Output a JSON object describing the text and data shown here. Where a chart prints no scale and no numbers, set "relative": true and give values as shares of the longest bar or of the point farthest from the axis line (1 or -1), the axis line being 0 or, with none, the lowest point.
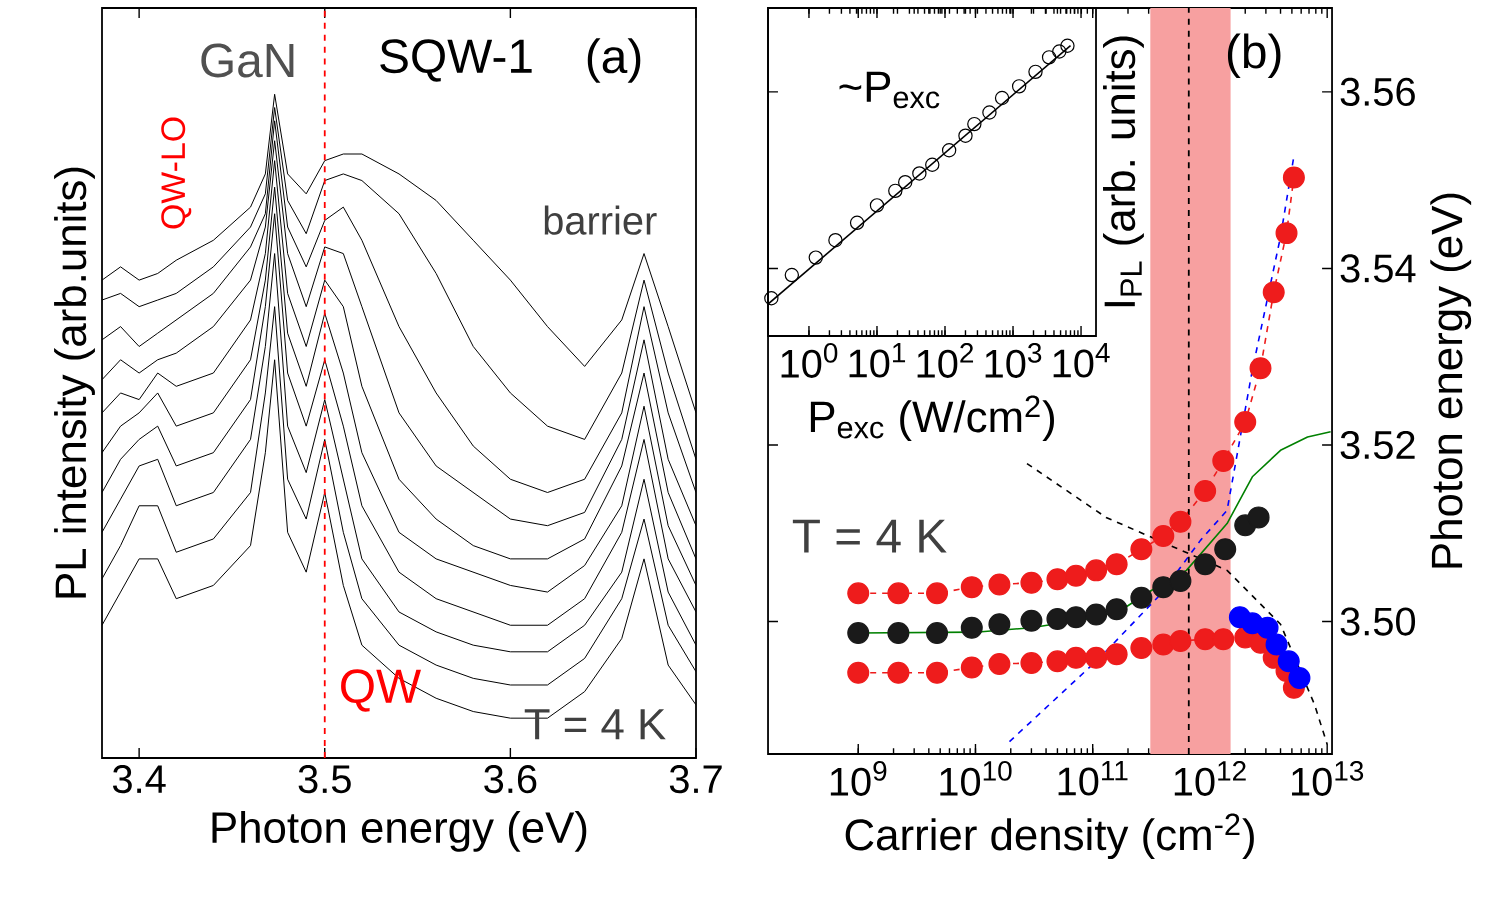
{
  "chart_data": [
    {
      "type": "line",
      "relative": true,
      "xlabel": "Photon energy (eV)",
      "ylabel": "PL intensity (arb.units)",
      "xlim": [
        3.38,
        3.7
      ],
      "xticks": [
        3.4,
        3.5,
        3.6,
        3.7
      ],
      "x": [
        3.38,
        3.39,
        3.4,
        3.41,
        3.42,
        3.44,
        3.46,
        3.468,
        3.473,
        3.48,
        3.49,
        3.5,
        3.51,
        3.52,
        3.54,
        3.56,
        3.58,
        3.6,
        3.62,
        3.64,
        3.66,
        3.672,
        3.685,
        3.7
      ],
      "series": [
        {
          "color": "#000000",
          "values": [
            0.72,
            0.74,
            0.72,
            0.73,
            0.75,
            0.78,
            0.83,
            0.88,
            1.0,
            0.88,
            0.85,
            0.9,
            0.91,
            0.91,
            0.88,
            0.84,
            0.78,
            0.72,
            0.65,
            0.59,
            0.66,
            0.76,
            0.65,
            0.52
          ]
        },
        {
          "color": "#000000",
          "values": [
            0.69,
            0.7,
            0.68,
            0.69,
            0.7,
            0.74,
            0.8,
            0.85,
            0.98,
            0.84,
            0.79,
            0.87,
            0.88,
            0.87,
            0.82,
            0.73,
            0.62,
            0.55,
            0.5,
            0.48,
            0.58,
            0.72,
            0.58,
            0.45
          ]
        },
        {
          "color": "#000000",
          "values": [
            0.63,
            0.65,
            0.62,
            0.64,
            0.66,
            0.7,
            0.77,
            0.82,
            0.96,
            0.8,
            0.74,
            0.81,
            0.83,
            0.78,
            0.65,
            0.55,
            0.47,
            0.42,
            0.4,
            0.42,
            0.52,
            0.68,
            0.52,
            0.4
          ]
        },
        {
          "color": "#000000",
          "values": [
            0.57,
            0.6,
            0.58,
            0.6,
            0.61,
            0.65,
            0.72,
            0.8,
            0.93,
            0.76,
            0.68,
            0.77,
            0.76,
            0.68,
            0.52,
            0.44,
            0.4,
            0.36,
            0.35,
            0.37,
            0.48,
            0.63,
            0.45,
            0.35
          ]
        },
        {
          "color": "#000000",
          "values": [
            0.52,
            0.55,
            0.54,
            0.58,
            0.56,
            0.58,
            0.66,
            0.76,
            0.9,
            0.7,
            0.62,
            0.72,
            0.68,
            0.56,
            0.42,
            0.36,
            0.32,
            0.3,
            0.3,
            0.33,
            0.44,
            0.58,
            0.4,
            0.3
          ]
        },
        {
          "color": "#000000",
          "values": [
            0.46,
            0.5,
            0.52,
            0.55,
            0.5,
            0.52,
            0.6,
            0.72,
            0.86,
            0.64,
            0.56,
            0.67,
            0.58,
            0.46,
            0.34,
            0.3,
            0.28,
            0.26,
            0.25,
            0.29,
            0.38,
            0.53,
            0.35,
            0.26
          ]
        },
        {
          "color": "#000000",
          "values": [
            0.4,
            0.45,
            0.48,
            0.5,
            0.44,
            0.46,
            0.54,
            0.68,
            0.82,
            0.58,
            0.5,
            0.6,
            0.5,
            0.38,
            0.28,
            0.24,
            0.22,
            0.2,
            0.2,
            0.24,
            0.34,
            0.48,
            0.3,
            0.22
          ]
        },
        {
          "color": "#000000",
          "values": [
            0.34,
            0.39,
            0.44,
            0.45,
            0.38,
            0.4,
            0.48,
            0.62,
            0.76,
            0.5,
            0.43,
            0.54,
            0.42,
            0.3,
            0.22,
            0.19,
            0.17,
            0.16,
            0.16,
            0.2,
            0.28,
            0.42,
            0.25,
            0.17
          ]
        },
        {
          "color": "#000000",
          "values": [
            0.27,
            0.32,
            0.38,
            0.38,
            0.31,
            0.33,
            0.4,
            0.55,
            0.68,
            0.42,
            0.36,
            0.48,
            0.34,
            0.24,
            0.17,
            0.14,
            0.12,
            0.11,
            0.11,
            0.15,
            0.24,
            0.36,
            0.2,
            0.13
          ]
        },
        {
          "color": "#000000",
          "values": [
            0.2,
            0.25,
            0.3,
            0.3,
            0.24,
            0.26,
            0.32,
            0.46,
            0.6,
            0.34,
            0.28,
            0.4,
            0.26,
            0.17,
            0.12,
            0.09,
            0.07,
            0.06,
            0.06,
            0.1,
            0.18,
            0.3,
            0.14,
            0.08
          ]
        }
      ],
      "ref_lines": [
        {
          "axis": "x",
          "value": 3.5,
          "color": "#ff0000",
          "line_style": "dashed"
        }
      ],
      "annotations": [
        "GaN",
        "SQW-1",
        "(a)",
        "QW-LO",
        "barrier",
        "QW",
        "T = 4 K"
      ]
    },
    {
      "type": "scatter",
      "xlabel": "Carrier density (cm$^{-2}$)",
      "ylabel": "Photon energy (eV)",
      "log": "x",
      "xlim": [
        170000000.0,
        11000000000000.0
      ],
      "ylim": [
        3.485,
        3.5695
      ],
      "xticks": [
        {
          "value": 1000000000.0,
          "label": "10$^{9}$"
        },
        {
          "value": 10000000000.0,
          "label": "10$^{10}$"
        },
        {
          "value": 100000000000.0,
          "label": "10$^{11}$"
        },
        {
          "value": 1000000000000.0,
          "label": "10$^{12}$"
        },
        {
          "value": 10000000000000.0,
          "label": "10$^{13}$"
        }
      ],
      "yticks": [
        {
          "value": 3.5,
          "label": "3.50"
        },
        3.52,
        3.54,
        3.56
      ],
      "bands": [
        {
          "axis": "x",
          "from": 310000000000.0,
          "to": 1500000000000.0,
          "color": "#f7a0a0"
        }
      ],
      "ref_lines": [
        {
          "axis": "x",
          "value": 660000000000.0,
          "color": "#000000",
          "line_style": "dashed"
        }
      ],
      "series": [
        {
          "type": "line",
          "color": "#000000",
          "line_style": "dashed",
          "marker": "none",
          "x": [
            27500000000.0,
            130000000000.0,
            1400000000000.0,
            4000000000000.0,
            7800000000000.0,
            10000000000000.0
          ],
          "values": [
            3.5179,
            3.5118,
            3.5058,
            3.4997,
            3.4906,
            3.4861
          ]
        },
        {
          "type": "line",
          "color": "#0000ff",
          "line_style": "dashed",
          "marker": "none",
          "x": [
            19500000000.0,
            115000000000.0,
            380000000000.0,
            830000000000.0,
            1400000000000.0,
            2300000000000.0,
            4000000000000.0,
            5200000000000.0
          ],
          "values": [
            3.4864,
            3.4959,
            3.5031,
            3.5092,
            3.5126,
            3.5285,
            3.5436,
            3.5527
          ]
        },
        {
          "type": "line",
          "color": "#ee1c1c",
          "line_style": "dashed",
          "marker": "circle",
          "x": [
            1000000000.0,
            2200000000.0,
            4700000000.0,
            9300000000.0,
            16000000000.0,
            30000000000.0,
            50000000000.0,
            72000000000.0,
            107000000000.0,
            160000000000.0,
            260000000000.0,
            400000000000.0,
            560000000000.0,
            910000000000.0,
            1300000000000.0,
            2000000000000.0,
            2700000000000.0,
            3500000000000.0,
            4500000000000.0,
            5200000000000.0
          ],
          "values": [
            3.5032,
            3.5032,
            3.5032,
            3.5039,
            3.5042,
            3.5044,
            3.5048,
            3.5052,
            3.5058,
            3.5065,
            3.5082,
            3.5097,
            3.5113,
            3.5148,
            3.5182,
            3.5226,
            3.5287,
            3.5373,
            3.544,
            3.5503
          ]
        },
        {
          "type": "line",
          "color": "#ee1c1c",
          "line_style": "dashed",
          "marker": "circle",
          "x": [
            1000000000.0,
            2200000000.0,
            4700000000.0,
            9300000000.0,
            16000000000.0,
            30000000000.0,
            50000000000.0,
            72000000000.0,
            107000000000.0,
            160000000000.0,
            260000000000.0,
            400000000000.0,
            560000000000.0,
            910000000000.0,
            1300000000000.0,
            2000000000000.0,
            2700000000000.0,
            3500000000000.0,
            4500000000000.0,
            5200000000000.0
          ],
          "values": [
            3.4942,
            3.4942,
            3.4942,
            3.4948,
            3.4952,
            3.4953,
            3.4955,
            3.4959,
            3.4959,
            3.4963,
            3.497,
            3.4974,
            3.4978,
            3.498,
            3.498,
            3.4982,
            3.4976,
            3.4959,
            3.4944,
            3.4925
          ]
        },
        {
          "type": "scatter",
          "color": "#1a1a1a",
          "marker": "circle",
          "x": [
            1000000000.0,
            2200000000.0,
            4700000000.0,
            9300000000.0,
            16000000000.0,
            30000000000.0,
            50000000000.0,
            72000000000.0,
            107000000000.0,
            160000000000.0,
            260000000000.0,
            400000000000.0,
            560000000000.0,
            910000000000.0,
            1350000000000.0,
            2000000000000.0,
            2600000000000.0
          ],
          "values": [
            3.4987,
            3.4987,
            3.4987,
            3.4993,
            3.4997,
            3.5001,
            3.5003,
            3.5005,
            3.5008,
            3.5014,
            3.5027,
            3.5039,
            3.5046,
            3.5065,
            3.5082,
            3.5109,
            3.5118
          ]
        },
        {
          "type": "line",
          "color": "#008000",
          "line_style": "solid",
          "marker": "none",
          "x": [
            1000000000.0,
            10000000000.0,
            30000000000.0,
            100000000000.0,
            170000000000.0,
            380000000000.0,
            630000000000.0,
            1400000000000.0,
            2300000000000.0,
            4000000000000.0,
            6800000000000.0,
            10700000000000.0
          ],
          "values": [
            3.4987,
            3.4988,
            3.4993,
            3.5004,
            3.5012,
            3.5042,
            3.5058,
            3.5111,
            3.5164,
            3.5194,
            3.5209,
            3.5215
          ]
        },
        {
          "type": "scatter",
          "color": "#0000ff",
          "marker": "circle",
          "x": [
            1800000000000.0,
            2300000000000.0,
            3100000000000.0,
            3700000000000.0,
            4700000000000.0,
            5800000000000.0
          ],
          "values": [
            3.5005,
            3.4998,
            3.4993,
            3.4974,
            3.4955,
            3.4936
          ]
        }
      ],
      "annotations": [
        "(b)",
        "T = 4 K"
      ]
    },
    {
      "type": "scatter",
      "relative": true,
      "log": "x",
      "tick_labels": "x",
      "xlabel": "P$_{exc}$ (W/cm$^{2}$)",
      "ylabel": "I$_{PL}$ (arb. units)",
      "xlim": [
        0.25,
        16600
      ],
      "xticks": [
        {
          "value": 1,
          "label": "10$^{0}$"
        },
        {
          "value": 10,
          "label": "10$^{1}$"
        },
        {
          "value": 100,
          "label": "10$^{2}$"
        },
        {
          "value": 1000,
          "label": "10$^{3}$"
        },
        {
          "value": 10000,
          "label": "10$^{4}$"
        }
      ],
      "series": [
        {
          "type": "scatter",
          "color": "#000000",
          "marker": "circle",
          "x": [
            0.28,
            0.56,
            1.26,
            2.45,
            5.1,
            10,
            18.6,
            26,
            42,
            65,
            115,
            200,
            270,
            450,
            690,
            1230,
            2140,
            3390,
            4790,
            6310
          ],
          "values": [
            0.13,
            0.21,
            0.27,
            0.33,
            0.39,
            0.45,
            0.5,
            0.53,
            0.56,
            0.59,
            0.64,
            0.69,
            0.73,
            0.77,
            0.82,
            0.86,
            0.91,
            0.96,
            0.98,
            1.0
          ]
        },
        {
          "type": "line",
          "color": "#000000",
          "line_style": "solid",
          "marker": "none",
          "x": [
            0.25,
            7000
          ],
          "values": [
            0.11,
            1.0
          ]
        }
      ],
      "annotations": [
        "~P$_{exc}$"
      ]
    }
  ]
}
